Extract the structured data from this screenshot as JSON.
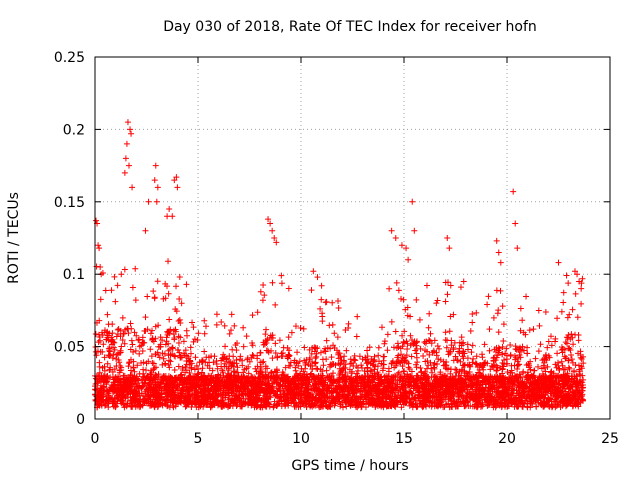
{
  "chart_data": {
    "type": "scatter",
    "title": "Day 030 of 2018, Rate Of TEC Index for receiver hofn",
    "xlabel": "GPS time / hours",
    "ylabel": "ROTI / TECUs",
    "xlim": [
      0,
      25
    ],
    "ylim": [
      0,
      0.25
    ],
    "x_ticks": [
      0,
      5,
      10,
      15,
      20,
      25
    ],
    "x_tick_labels": [
      "0",
      "5",
      "10",
      "15",
      "20",
      "25"
    ],
    "y_ticks": [
      0,
      0.05,
      0.1,
      0.15,
      0.2,
      0.25
    ],
    "y_tick_labels": [
      "0",
      "0.05",
      "0.1",
      "0.15",
      "0.2",
      "0.25"
    ],
    "grid": true,
    "marker": "+",
    "color": "#ff0000",
    "data_x_range": [
      0,
      23.7
    ],
    "series": [
      {
        "name": "ROTI",
        "x": [
          1.6,
          1.7,
          1.75,
          1.55,
          1.5,
          1.45,
          1.65,
          1.8,
          2.95,
          2.9,
          3.05,
          3.0,
          3.85,
          3.95,
          4.0,
          3.75,
          0.05,
          0.1,
          0.15,
          0.2,
          0.25,
          0.3,
          2.6,
          2.45,
          3.6,
          3.5,
          8.4,
          8.5,
          8.6,
          8.7,
          8.8,
          10.6,
          10.8,
          11.0,
          14.4,
          14.6,
          14.9,
          15.1,
          15.4,
          15.5,
          15.2,
          17.1,
          17.2,
          17.9,
          19.5,
          19.6,
          19.7,
          20.3,
          20.4,
          20.5,
          22.5,
          23.3,
          23.4,
          23.5,
          23.6
        ],
        "y": [
          0.205,
          0.2,
          0.197,
          0.19,
          0.18,
          0.17,
          0.175,
          0.16,
          0.175,
          0.165,
          0.16,
          0.15,
          0.165,
          0.167,
          0.16,
          0.14,
          0.137,
          0.135,
          0.12,
          0.118,
          0.105,
          0.1,
          0.15,
          0.13,
          0.145,
          0.14,
          0.138,
          0.135,
          0.13,
          0.125,
          0.122,
          0.102,
          0.098,
          0.092,
          0.13,
          0.125,
          0.12,
          0.118,
          0.15,
          0.13,
          0.11,
          0.125,
          0.118,
          0.095,
          0.123,
          0.115,
          0.108,
          0.157,
          0.135,
          0.118,
          0.108,
          0.102,
          0.1,
          0.095,
          0.09
        ]
      }
    ]
  }
}
